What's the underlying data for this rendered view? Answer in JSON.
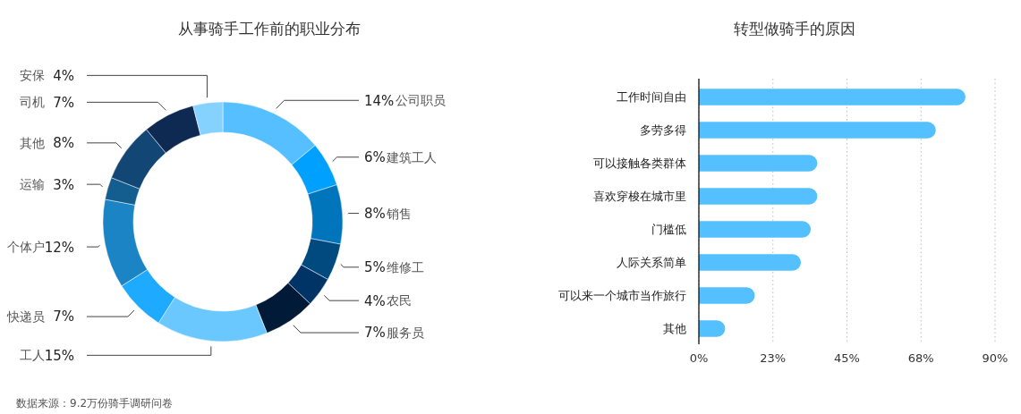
{
  "chart_data": [
    {
      "type": "donut",
      "title": "从事骑手工作前的职业分布",
      "categories": [
        "公司职员",
        "建筑工人",
        "销售",
        "维修工",
        "农民",
        "服务员",
        "工人",
        "快递员",
        "个体户",
        "运输",
        "其他",
        "司机",
        "安保"
      ],
      "values": [
        14,
        6,
        8,
        5,
        4,
        7,
        15,
        7,
        12,
        3,
        8,
        7,
        4
      ],
      "colors": [
        "#55bfff",
        "#00a0ff",
        "#0075bb",
        "#004a80",
        "#003466",
        "#001a38",
        "#6ac8ff",
        "#1eaaff",
        "#1b84c4",
        "#145d8f",
        "#124675",
        "#0f2a52",
        "#85d1ff"
      ],
      "value_labels": [
        "14%",
        "6%",
        "8%",
        "5%",
        "4%",
        "7%",
        "15%",
        "7%",
        "12%",
        "3%",
        "8%",
        "7%",
        "4%"
      ],
      "annotations": [
        "数据来源：9.2万份骑手调研问卷"
      ]
    },
    {
      "type": "bar",
      "orientation": "horizontal",
      "title": "转型做骑手的原因",
      "categories": [
        "工作时间自由",
        "多劳多得",
        "可以接触各类群体",
        "喜欢穿梭在城市里",
        "门槛低",
        "人际关系简单",
        "可以来一个城市当作旅行",
        "其他"
      ],
      "values": [
        81,
        72,
        36,
        36,
        34,
        31,
        17,
        8
      ],
      "color": "#55c0ff",
      "xlim": [
        0,
        90
      ],
      "xticks": [
        {
          "value": 0,
          "label": "0%"
        },
        {
          "value": 22.5,
          "label": "23%"
        },
        {
          "value": 45,
          "label": "45%"
        },
        {
          "value": 67.5,
          "label": "68%"
        },
        {
          "value": 90,
          "label": "90%"
        }
      ],
      "grid": "x"
    }
  ]
}
